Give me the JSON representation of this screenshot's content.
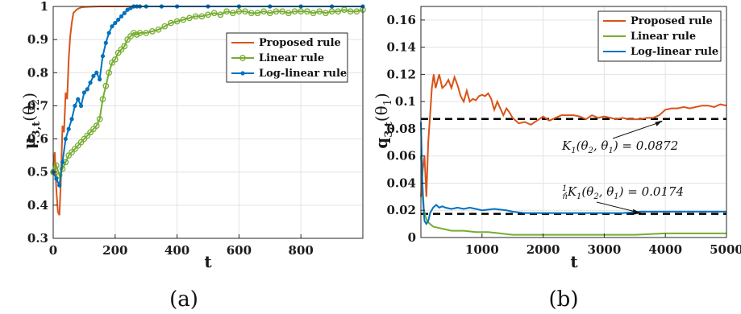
{
  "panels": {
    "a": "(a)",
    "b": "(b)"
  },
  "chart_data": [
    {
      "type": "line",
      "title": "",
      "xlabel": "t",
      "ylabel": "μ3,t(θ2)",
      "ylabel_main": "μ",
      "ylabel_sub": "3,t",
      "ylabel_arg": "(θ2)",
      "ylabel_arg_main": "(θ",
      "ylabel_arg_sub": "2",
      "ylabel_arg_close": ")",
      "xlim": [
        0,
        1000
      ],
      "ylim": [
        0.3,
        1
      ],
      "xticks": [
        0,
        200,
        400,
        600,
        800
      ],
      "xtick_labels": [
        "0",
        "200",
        "400",
        "600",
        "800"
      ],
      "yticks": [
        0.3,
        0.4,
        0.5,
        0.6,
        0.7,
        0.8,
        0.9,
        1
      ],
      "ytick_labels": [
        "0.3",
        "0.4",
        "0.5",
        "0.6",
        "0.7",
        "0.8",
        "0.9",
        "1"
      ],
      "grid": true,
      "legend_position": "right",
      "series": [
        {
          "name": "Proposed rule",
          "color": "#d95319",
          "marker": "none",
          "x": [
            0,
            5,
            10,
            15,
            20,
            25,
            30,
            35,
            40,
            45,
            50,
            55,
            60,
            65,
            70,
            75,
            80,
            85,
            90,
            100,
            120,
            150,
            200,
            300,
            500,
            1000
          ],
          "y": [
            0.52,
            0.56,
            0.45,
            0.38,
            0.37,
            0.48,
            0.64,
            0.62,
            0.74,
            0.72,
            0.84,
            0.91,
            0.95,
            0.98,
            0.985,
            0.99,
            0.993,
            0.995,
            0.997,
            0.998,
            0.999,
            1.0,
            1.0,
            1.0,
            1.0,
            1.0
          ]
        },
        {
          "name": "Linear rule",
          "color": "#77ac30",
          "marker": "circle",
          "x": [
            0,
            10,
            20,
            30,
            40,
            50,
            60,
            70,
            80,
            90,
            100,
            110,
            120,
            130,
            140,
            150,
            160,
            170,
            180,
            190,
            200,
            210,
            220,
            230,
            240,
            250,
            260,
            270,
            280,
            300,
            320,
            340,
            360,
            380,
            400,
            420,
            440,
            460,
            480,
            500,
            520,
            540,
            560,
            580,
            600,
            620,
            640,
            660,
            680,
            700,
            720,
            740,
            760,
            780,
            800,
            820,
            840,
            860,
            880,
            900,
            920,
            940,
            960,
            980,
            1000
          ],
          "y": [
            0.5,
            0.52,
            0.49,
            0.51,
            0.53,
            0.55,
            0.56,
            0.57,
            0.58,
            0.59,
            0.6,
            0.61,
            0.62,
            0.63,
            0.64,
            0.66,
            0.72,
            0.76,
            0.8,
            0.83,
            0.84,
            0.86,
            0.87,
            0.88,
            0.9,
            0.91,
            0.92,
            0.915,
            0.92,
            0.92,
            0.925,
            0.93,
            0.94,
            0.95,
            0.955,
            0.96,
            0.965,
            0.97,
            0.97,
            0.975,
            0.98,
            0.975,
            0.985,
            0.98,
            0.985,
            0.985,
            0.98,
            0.98,
            0.985,
            0.98,
            0.985,
            0.985,
            0.98,
            0.985,
            0.985,
            0.985,
            0.98,
            0.985,
            0.98,
            0.985,
            0.985,
            0.99,
            0.985,
            0.985,
            0.99
          ]
        },
        {
          "name": "Log-linear rule",
          "color": "#0072bd",
          "marker": "dot",
          "x": [
            0,
            10,
            20,
            30,
            40,
            50,
            60,
            70,
            80,
            90,
            100,
            110,
            120,
            130,
            140,
            150,
            160,
            170,
            180,
            190,
            200,
            210,
            220,
            230,
            240,
            250,
            260,
            270,
            280,
            300,
            350,
            400,
            500,
            600,
            700,
            800,
            900,
            1000
          ],
          "y": [
            0.5,
            0.48,
            0.46,
            0.53,
            0.6,
            0.63,
            0.66,
            0.7,
            0.72,
            0.7,
            0.74,
            0.75,
            0.77,
            0.79,
            0.8,
            0.78,
            0.85,
            0.89,
            0.92,
            0.94,
            0.95,
            0.96,
            0.97,
            0.98,
            0.99,
            0.995,
            1.0,
            1.0,
            1.0,
            1.0,
            1.0,
            1.0,
            1.0,
            1.0,
            1.0,
            1.0,
            1.0,
            1.0
          ]
        }
      ]
    },
    {
      "type": "line",
      "title": "",
      "xlabel": "t",
      "ylabel": "q3,t(θ1)",
      "ylabel_main": "q",
      "ylabel_sub": "3,t",
      "ylabel_arg": "(θ1)",
      "ylabel_arg_main": "(θ",
      "ylabel_arg_sub": "1",
      "ylabel_arg_close": ")",
      "xlim": [
        0,
        5000
      ],
      "ylim": [
        0,
        0.17
      ],
      "xticks": [
        1000,
        2000,
        3000,
        4000,
        5000
      ],
      "xtick_labels": [
        "1000",
        "2000",
        "3000",
        "4000",
        "5000"
      ],
      "yticks": [
        0,
        0.02,
        0.04,
        0.06,
        0.08,
        0.1,
        0.12,
        0.14,
        0.16
      ],
      "ytick_labels": [
        "0",
        "0.02",
        "0.04",
        "0.06",
        "0.08",
        "0.1",
        "0.12",
        "0.14",
        "0.16"
      ],
      "grid": true,
      "legend_position": "top-right",
      "reference_lines": [
        {
          "y": 0.0872,
          "label": "K1(θ2, θ1) = 0.0872",
          "style": "dashed",
          "color": "#000000"
        },
        {
          "y": 0.0174,
          "label": "1/n K1(θ2, θ1) = 0.0174",
          "style": "dashed",
          "color": "#000000"
        }
      ],
      "annotations": [
        {
          "text": "K1(θ2, θ1) = 0.0872",
          "arrow_to_x": 3950,
          "arrow_to_y": 0.0872
        },
        {
          "text": "1/n K1(θ2, θ1) = 0.0174",
          "arrow_to_x": 3600,
          "arrow_to_y": 0.0174
        }
      ],
      "series": [
        {
          "name": "Proposed rule",
          "color": "#d95319",
          "x": [
            0,
            30,
            60,
            90,
            120,
            150,
            180,
            210,
            240,
            270,
            300,
            350,
            400,
            450,
            500,
            550,
            600,
            650,
            700,
            750,
            800,
            850,
            900,
            950,
            1000,
            1050,
            1100,
            1150,
            1200,
            1250,
            1300,
            1350,
            1400,
            1450,
            1500,
            1600,
            1700,
            1800,
            1900,
            2000,
            2100,
            2200,
            2300,
            2400,
            2500,
            2600,
            2700,
            2800,
            2900,
            3000,
            3100,
            3200,
            3300,
            3400,
            3500,
            3600,
            3700,
            3800,
            3900,
            4000,
            4100,
            4200,
            4300,
            4400,
            4500,
            4600,
            4700,
            4800,
            4900,
            5000
          ],
          "y": [
            0.03,
            0.05,
            0.06,
            0.03,
            0.07,
            0.09,
            0.11,
            0.12,
            0.11,
            0.115,
            0.12,
            0.11,
            0.112,
            0.116,
            0.11,
            0.118,
            0.112,
            0.104,
            0.1,
            0.108,
            0.1,
            0.102,
            0.101,
            0.104,
            0.105,
            0.104,
            0.106,
            0.102,
            0.094,
            0.1,
            0.095,
            0.09,
            0.095,
            0.092,
            0.088,
            0.084,
            0.085,
            0.083,
            0.086,
            0.089,
            0.086,
            0.088,
            0.09,
            0.09,
            0.09,
            0.089,
            0.087,
            0.09,
            0.088,
            0.089,
            0.088,
            0.087,
            0.088,
            0.087,
            0.087,
            0.087,
            0.088,
            0.088,
            0.09,
            0.094,
            0.095,
            0.095,
            0.096,
            0.095,
            0.096,
            0.097,
            0.097,
            0.096,
            0.098,
            0.097
          ]
        },
        {
          "name": "Linear rule",
          "color": "#77ac30",
          "x": [
            0,
            50,
            100,
            150,
            200,
            300,
            400,
            500,
            700,
            900,
            1100,
            1300,
            1500,
            1700,
            2000,
            2500,
            3000,
            3500,
            4000,
            4500,
            5000
          ],
          "y": [
            0.06,
            0.02,
            0.012,
            0.01,
            0.008,
            0.007,
            0.006,
            0.005,
            0.005,
            0.004,
            0.004,
            0.003,
            0.002,
            0.002,
            0.002,
            0.002,
            0.002,
            0.002,
            0.003,
            0.003,
            0.003
          ]
        },
        {
          "name": "Log-linear rule",
          "color": "#0072bd",
          "x": [
            0,
            30,
            60,
            90,
            120,
            150,
            200,
            250,
            300,
            350,
            400,
            500,
            600,
            700,
            800,
            900,
            1000,
            1200,
            1400,
            1500,
            1700,
            2000,
            2300,
            2600,
            3000,
            3300,
            3600,
            4000,
            4300,
            4600,
            5000
          ],
          "y": [
            0.085,
            0.03,
            0.012,
            0.01,
            0.012,
            0.018,
            0.022,
            0.024,
            0.022,
            0.023,
            0.022,
            0.021,
            0.022,
            0.021,
            0.022,
            0.021,
            0.02,
            0.021,
            0.02,
            0.019,
            0.018,
            0.018,
            0.018,
            0.018,
            0.018,
            0.018,
            0.019,
            0.019,
            0.019,
            0.019,
            0.019
          ]
        }
      ]
    }
  ]
}
